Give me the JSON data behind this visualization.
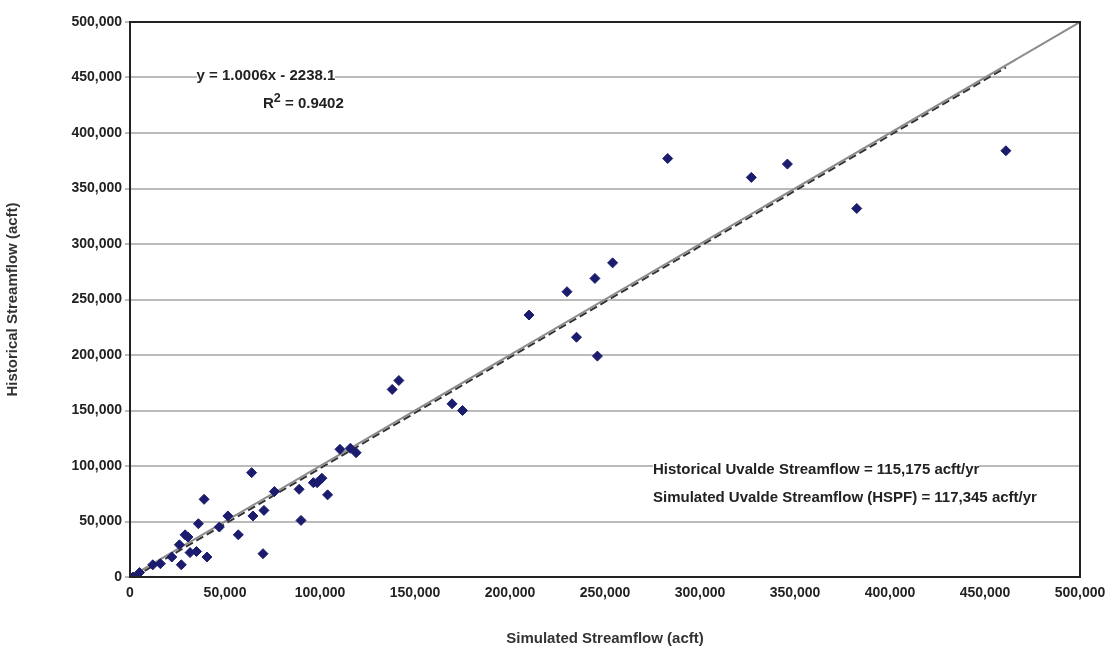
{
  "chart_data": {
    "type": "scatter",
    "xlabel": "Simulated Streamflow (acft)",
    "ylabel": "Historical Streamflow (acft)",
    "xlim": [
      0,
      500000
    ],
    "ylim": [
      0,
      500000
    ],
    "xticks": [
      {
        "value": 0,
        "label": "0"
      },
      {
        "value": 50000,
        "label": "50,000"
      },
      {
        "value": 100000,
        "label": "100,000"
      },
      {
        "value": 150000,
        "label": "150,000"
      },
      {
        "value": 200000,
        "label": "200,000"
      },
      {
        "value": 250000,
        "label": "250,000"
      },
      {
        "value": 300000,
        "label": "300,000"
      },
      {
        "value": 350000,
        "label": "350,000"
      },
      {
        "value": 400000,
        "label": "400,000"
      },
      {
        "value": 450000,
        "label": "450,000"
      },
      {
        "value": 500000,
        "label": "500,000"
      }
    ],
    "yticks": [
      {
        "value": 0,
        "label": "0"
      },
      {
        "value": 50000,
        "label": "50,000"
      },
      {
        "value": 100000,
        "label": "100,000"
      },
      {
        "value": 150000,
        "label": "150,000"
      },
      {
        "value": 200000,
        "label": "200,000"
      },
      {
        "value": 250000,
        "label": "250,000"
      },
      {
        "value": 300000,
        "label": "300,000"
      },
      {
        "value": 350000,
        "label": "350,000"
      },
      {
        "value": 400000,
        "label": "400,000"
      },
      {
        "value": 450000,
        "label": "450,000"
      },
      {
        "value": 500000,
        "label": "500,000"
      }
    ],
    "grid": "y",
    "marker": "diamond",
    "series": [
      {
        "type": "scatter",
        "color": "#1c1c6e",
        "x": [
          1600,
          5000,
          12000,
          16000,
          22000,
          27000,
          26000,
          29000,
          30500,
          31600,
          35000,
          36000,
          39000,
          40500,
          47000,
          51500,
          57000,
          64000,
          64700,
          70000,
          70500,
          76000,
          89000,
          90000,
          96500,
          98500,
          101000,
          104000,
          110500,
          116000,
          119000,
          138000,
          141500,
          169500,
          175000,
          210000,
          230000,
          235000,
          244700,
          246000,
          254000,
          283000,
          327000,
          346000,
          382500,
          461000
        ],
        "values": [
          0,
          4000,
          11000,
          12000,
          18000,
          11000,
          29000,
          38000,
          36000,
          22000,
          23000,
          48000,
          70000,
          18000,
          45000,
          55000,
          38000,
          94000,
          55000,
          21000,
          60000,
          77000,
          79000,
          51000,
          85000,
          85000,
          89000,
          74000,
          115000,
          116000,
          112000,
          169000,
          177000,
          156000,
          150000,
          236000,
          257000,
          216000,
          269000,
          199000,
          283000,
          377000,
          360000,
          372000,
          332000,
          384000
        ]
      },
      {
        "type": "line",
        "color": "#8c8c8c",
        "line_style": "solid",
        "marker": "none",
        "x": [
          0,
          500000
        ],
        "values": [
          0,
          500000
        ]
      },
      {
        "type": "line",
        "color": "#333333",
        "line_style": "dashed",
        "marker": "none",
        "x": [
          2200,
          461000
        ],
        "values": [
          0,
          459000
        ]
      }
    ],
    "annotations": [
      "y = 1.0006x - 2238.1",
      "R$^{2}$ = 0.9402",
      "Historical Uvalde Streamflow = 115,175 acft/yr",
      "Simulated Uvalde Streamflow (HSPF) = 117,345 acft/yr"
    ]
  }
}
